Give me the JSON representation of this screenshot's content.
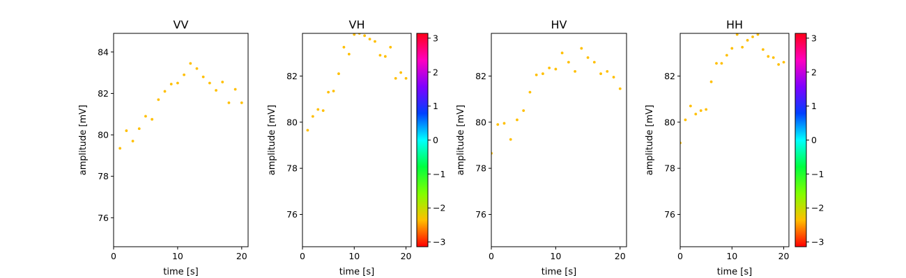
{
  "chart_data": [
    {
      "type": "scatter",
      "title": "VV",
      "xlabel": "time [s]",
      "ylabel": "amplitude [mV]",
      "xlim": [
        0,
        21
      ],
      "ylim": [
        74.6,
        84.9
      ],
      "xticks": [
        0,
        10,
        20
      ],
      "yticks": [
        76,
        78,
        80,
        82,
        84
      ],
      "xtick_labels": [
        "0",
        "10",
        "20"
      ],
      "ytick_labels": [
        "76",
        "78",
        "80",
        "82",
        "84"
      ],
      "grid": false,
      "colorbar": false,
      "point_color": "#ffbf00",
      "x": [
        1,
        2,
        3,
        4,
        5,
        6,
        7,
        8,
        9,
        10,
        11,
        12,
        13,
        14,
        15,
        16,
        17,
        18,
        19,
        20
      ],
      "y": [
        79.35,
        80.2,
        79.7,
        80.3,
        80.9,
        80.75,
        81.7,
        82.1,
        82.45,
        82.5,
        82.9,
        83.45,
        83.2,
        82.8,
        82.5,
        82.15,
        82.55,
        81.55,
        82.2,
        81.55
      ]
    },
    {
      "type": "scatter",
      "title": "VH",
      "xlabel": "time [s]",
      "ylabel": "amplitude [mV]",
      "xlim": [
        0,
        21
      ],
      "ylim": [
        74.6,
        83.85
      ],
      "xticks": [
        0,
        10,
        20
      ],
      "yticks": [
        76,
        78,
        80,
        82
      ],
      "xtick_labels": [
        "0",
        "10",
        "20"
      ],
      "ytick_labels": [
        "76",
        "78",
        "80",
        "82"
      ],
      "grid": false,
      "colorbar": true,
      "point_color": "#ffbf00",
      "x": [
        1,
        2,
        3,
        4,
        5,
        6,
        7,
        8,
        9,
        10,
        11,
        12,
        13,
        14,
        15,
        16,
        17,
        18,
        19,
        20
      ],
      "y": [
        79.65,
        80.25,
        80.55,
        80.5,
        81.3,
        81.35,
        82.1,
        83.25,
        82.95,
        83.8,
        83.85,
        83.75,
        83.6,
        83.5,
        82.9,
        82.85,
        83.25,
        81.9,
        82.15,
        81.9
      ]
    },
    {
      "type": "scatter",
      "title": "HV",
      "xlabel": "time [s]",
      "ylabel": "amplitude [mV]",
      "xlim": [
        0,
        21
      ],
      "ylim": [
        74.6,
        83.85
      ],
      "xticks": [
        0,
        10,
        20
      ],
      "yticks": [
        76,
        78,
        80,
        82
      ],
      "xtick_labels": [
        "0",
        "10",
        "20"
      ],
      "ytick_labels": [
        "76",
        "78",
        "80",
        "82"
      ],
      "grid": false,
      "colorbar": false,
      "point_color": "#ffbf00",
      "x": [
        0,
        1,
        2,
        3,
        4,
        5,
        6,
        7,
        8,
        9,
        10,
        11,
        12,
        13,
        14,
        15,
        16,
        17,
        18,
        19,
        20
      ],
      "y": [
        78.65,
        79.9,
        79.95,
        79.25,
        80.1,
        80.5,
        81.3,
        82.05,
        82.1,
        82.35,
        82.3,
        83.0,
        82.6,
        82.2,
        83.2,
        82.8,
        82.6,
        82.1,
        82.2,
        81.95,
        81.45
      ]
    },
    {
      "type": "scatter",
      "title": "HH",
      "xlabel": "time [s]",
      "ylabel": "amplitude [mV]",
      "xlim": [
        0,
        21
      ],
      "ylim": [
        74.6,
        83.85
      ],
      "xticks": [
        0,
        10,
        20
      ],
      "yticks": [
        76,
        78,
        80,
        82
      ],
      "xtick_labels": [
        "0",
        "10",
        "20"
      ],
      "ytick_labels": [
        "76",
        "78",
        "80",
        "82"
      ],
      "grid": false,
      "colorbar": true,
      "point_color": "#ffbf00",
      "x": [
        0,
        1,
        2,
        3,
        4,
        5,
        6,
        7,
        8,
        9,
        10,
        11,
        12,
        13,
        14,
        15,
        16,
        17,
        18,
        19,
        20
      ],
      "y": [
        79.1,
        80.1,
        80.7,
        80.35,
        80.5,
        80.55,
        81.75,
        82.55,
        82.55,
        82.9,
        83.2,
        83.8,
        83.25,
        83.55,
        83.7,
        83.8,
        83.15,
        82.85,
        82.8,
        82.5,
        82.6
      ]
    }
  ],
  "colorbar": {
    "range": [
      -3.1416,
      3.1416
    ],
    "ticks": [
      -3,
      -2,
      -1,
      0,
      1,
      2,
      3
    ],
    "tick_labels": [
      "−3",
      "−2",
      "−1",
      "0",
      "1",
      "2",
      "3"
    ],
    "colormap": "hsv",
    "colors": [
      "#ff0000",
      "#ffbf00",
      "#80ff00",
      "#00ff40",
      "#00ffff",
      "#0040ff",
      "#7f00ff",
      "#ff00bf",
      "#ff0018"
    ]
  }
}
